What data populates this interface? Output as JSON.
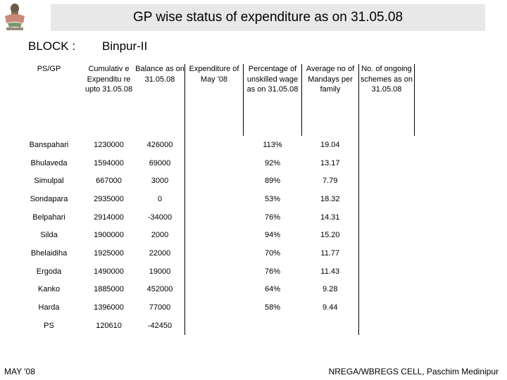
{
  "header": {
    "title": "GP wise status of expenditure as on 31.05.08",
    "block_label": "BLOCK :",
    "block_value": "Binpur-II"
  },
  "table": {
    "columns": [
      "PS/GP",
      "Cumulativ e Expenditu re upto 31.05.08",
      "Balance as on 31.05.08",
      "Expenditure of May '08",
      "Percentage of unskilled wage as on 31.05.08",
      "Average no of Mandays per family",
      "No. of ongoing schemes as on 31.05.08"
    ],
    "rows": [
      [
        "Banspahari",
        "1230000",
        "426000",
        "",
        "113%",
        "19.04",
        ""
      ],
      [
        "Bhulaveda",
        "1594000",
        "69000",
        "",
        "92%",
        "13.17",
        ""
      ],
      [
        "Simulpal",
        "667000",
        "3000",
        "",
        "89%",
        "7.79",
        ""
      ],
      [
        "Sondapara",
        "2935000",
        "0",
        "",
        "53%",
        "18.32",
        ""
      ],
      [
        "Belpahari",
        "2914000",
        "-34000",
        "",
        "76%",
        "14.31",
        ""
      ],
      [
        "Silda",
        "1900000",
        "2000",
        "",
        "94%",
        "15.20",
        ""
      ],
      [
        "Bhelaidiha",
        "1925000",
        "22000",
        "",
        "70%",
        "11.77",
        ""
      ],
      [
        "Ergoda",
        "1490000",
        "19000",
        "",
        "76%",
        "11.43",
        ""
      ],
      [
        "Kanko",
        "1885000",
        "452000",
        "",
        "64%",
        "9.28",
        ""
      ],
      [
        "Harda",
        "1396000",
        "77000",
        "",
        "58%",
        "9.44",
        ""
      ],
      [
        "PS",
        "120610",
        "-42450",
        "",
        "",
        "",
        ""
      ]
    ]
  },
  "footer": {
    "left": "MAY '08",
    "right": "NREGA/WBREGS CELL, Paschim Medinipur"
  },
  "logo": {
    "icon": "government-emblem-icon"
  }
}
